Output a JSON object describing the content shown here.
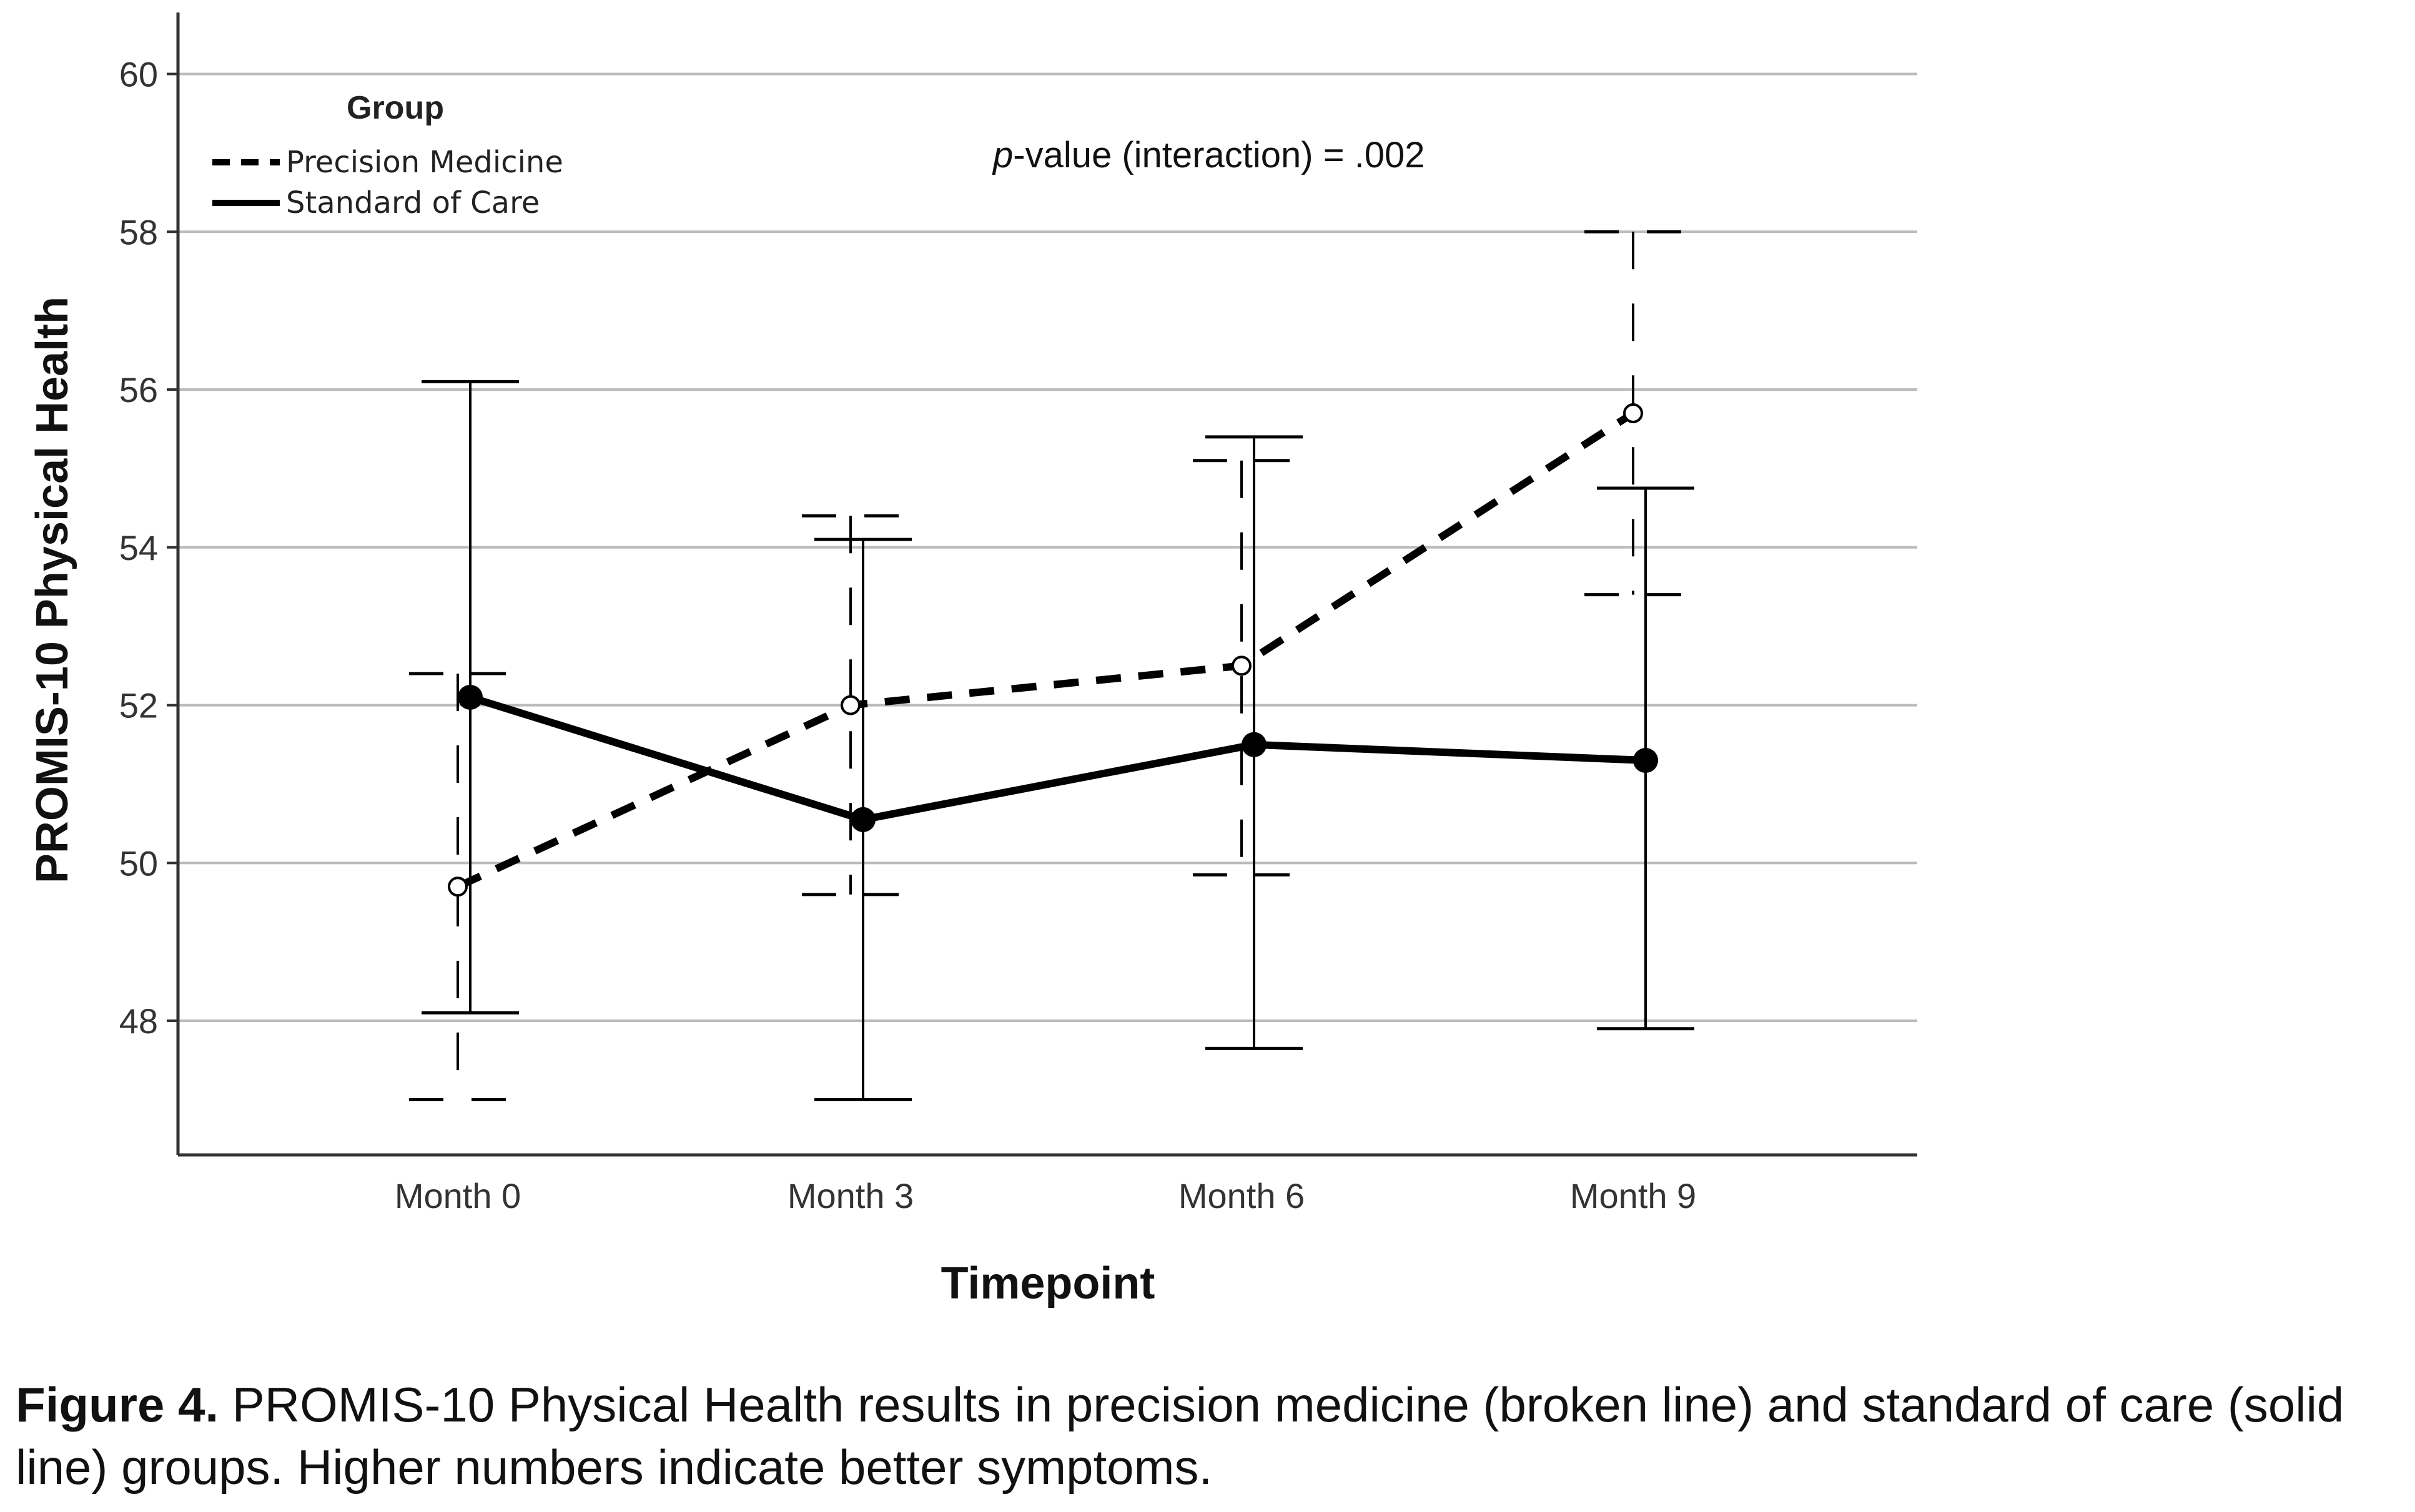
{
  "chart_data": {
    "type": "line",
    "categories": [
      "Month 0",
      "Month 3",
      "Month 6",
      "Month 9"
    ],
    "xlabel": "Timepoint",
    "ylabel": "PROMIS-10 Physical Health",
    "ylim": [
      46.3,
      60.7
    ],
    "yticks": [
      48,
      50,
      52,
      54,
      56,
      58,
      60
    ],
    "grid": "horizontal",
    "legend": {
      "title": "Group",
      "placement": "top-left",
      "entries": [
        "Precision Medicine",
        "Standard of Care"
      ]
    },
    "annotation": {
      "italic": "p",
      "rest": "-value (interaction) = .002"
    },
    "series": [
      {
        "name": "Precision Medicine",
        "style": "dashed",
        "marker": "open-circle",
        "values": [
          49.7,
          52.0,
          52.5,
          55.7
        ],
        "error_low": [
          47.0,
          49.6,
          49.85,
          53.4
        ],
        "error_high": [
          52.4,
          54.4,
          55.1,
          58.0
        ]
      },
      {
        "name": "Standard of Care",
        "style": "solid",
        "marker": "filled-circle",
        "values": [
          52.1,
          50.55,
          51.5,
          51.3
        ],
        "error_low": [
          48.1,
          47.0,
          47.65,
          47.9
        ],
        "error_high": [
          56.1,
          54.1,
          55.4,
          54.75
        ]
      }
    ]
  },
  "caption": {
    "label": "Figure 4.",
    "text": " PROMIS-10 Physical Health results in precision medicine (broken line) and standard of care (solid line) groups. Higher numbers indicate better symptoms."
  },
  "colors": {
    "line": "#000000",
    "grid": "#bbbbbb",
    "axis": "#333333"
  }
}
